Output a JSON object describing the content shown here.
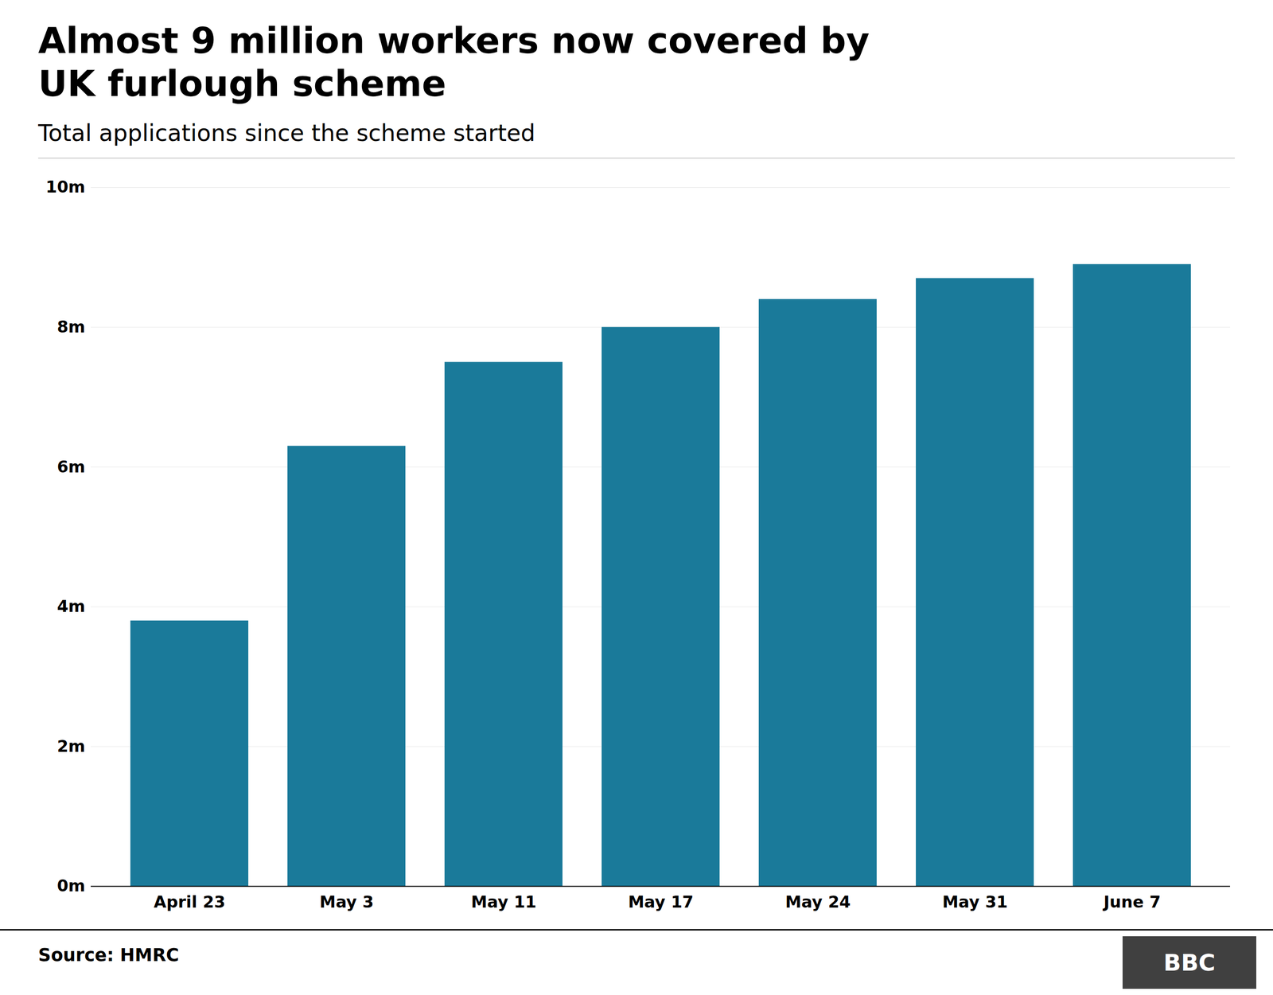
{
  "chart_data": {
    "type": "bar",
    "title": "Almost 9 million workers now covered by\nUK furlough scheme",
    "subtitle": "Total applications since the scheme started",
    "caption": "Source: HMRC",
    "annotations": [
      "BBC"
    ],
    "categories": [
      "April 23",
      "May 3",
      "May 11",
      "May 17",
      "May 24",
      "May 31",
      "June 7"
    ],
    "values": [
      3.8,
      6.3,
      7.5,
      8.0,
      8.4,
      8.7,
      8.9
    ],
    "color": "#1a7a9a",
    "ylim": [
      0,
      10
    ],
    "yticks": [
      {
        "value": 0,
        "label": "0m"
      },
      {
        "value": 2,
        "label": "2m"
      },
      {
        "value": 4,
        "label": "4m"
      },
      {
        "value": 6,
        "label": "6m"
      },
      {
        "value": 8,
        "label": "8m"
      },
      {
        "value": 10,
        "label": "10m"
      }
    ],
    "grid": true
  }
}
